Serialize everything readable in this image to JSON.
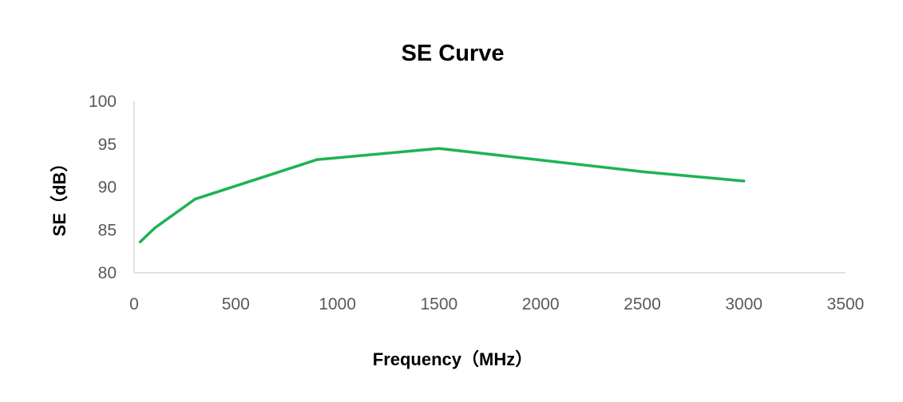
{
  "chart_data": {
    "type": "line",
    "title": "SE Curve",
    "xlabel": "Frequency（MHz）",
    "ylabel": "SE（dB）",
    "xlim": [
      0,
      3500
    ],
    "ylim": [
      80,
      100
    ],
    "x_ticks": [
      "0",
      "500",
      "1000",
      "1500",
      "2000",
      "2500",
      "3000",
      "3500"
    ],
    "y_ticks": [
      "100",
      "95",
      "90",
      "85",
      "80"
    ],
    "grid": false,
    "legend": "none",
    "series": [
      {
        "color": "#1fb254",
        "points": [
          {
            "x": 30,
            "y": 83.6
          },
          {
            "x": 100,
            "y": 85.2
          },
          {
            "x": 300,
            "y": 88.6
          },
          {
            "x": 900,
            "y": 93.2
          },
          {
            "x": 1500,
            "y": 94.5
          },
          {
            "x": 2500,
            "y": 91.8
          },
          {
            "x": 3000,
            "y": 90.7
          }
        ]
      }
    ]
  }
}
